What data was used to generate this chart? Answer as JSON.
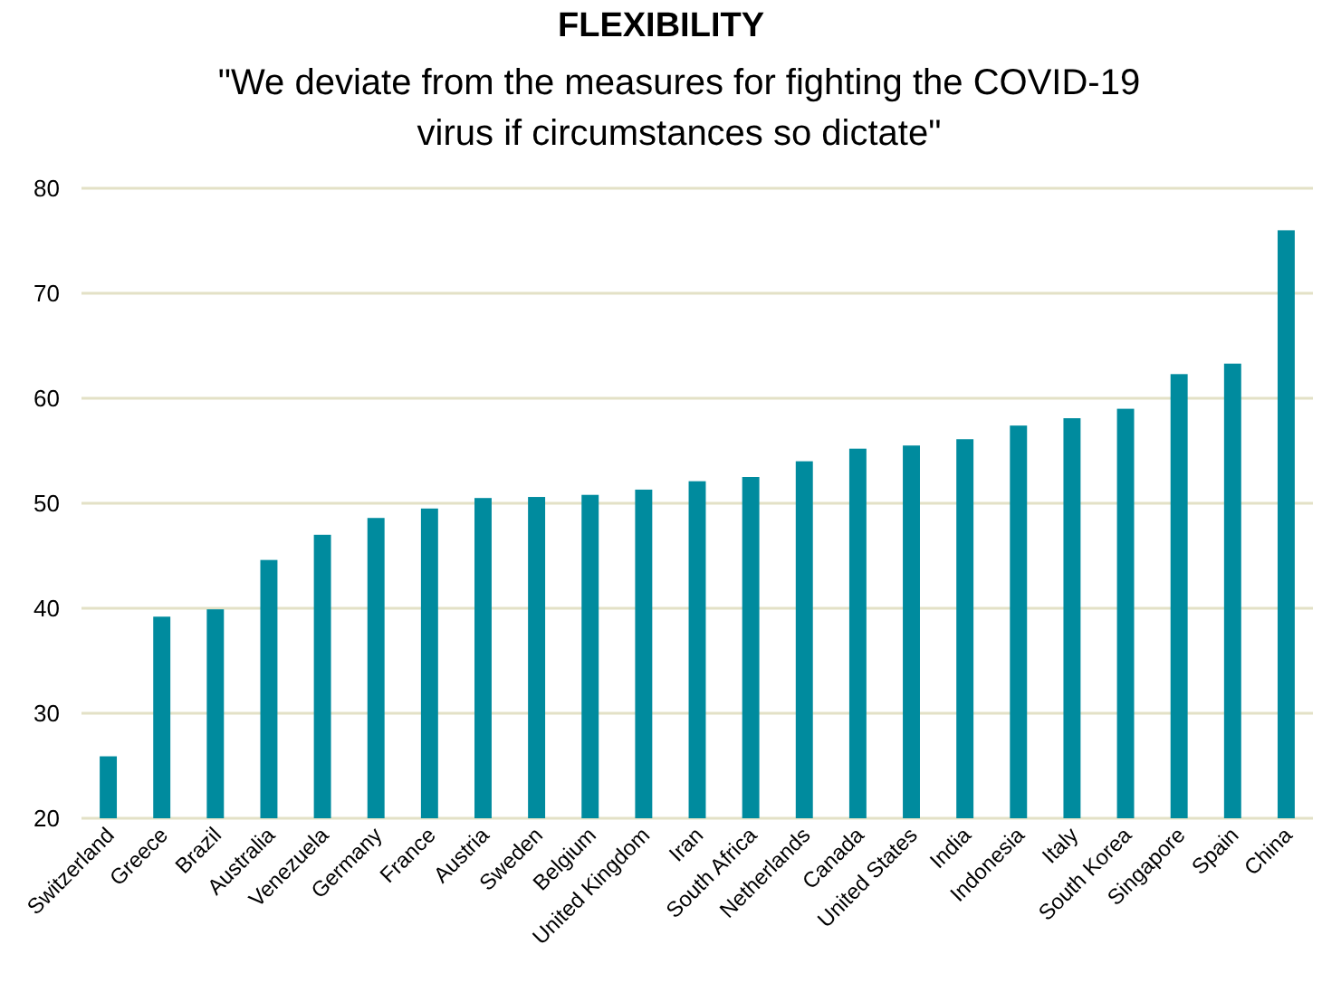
{
  "chart_data": {
    "type": "bar",
    "title": "FLEXIBILITY",
    "subtitle": "\"We deviate from the measures for fighting the COVID-19\nvirus if circumstances so dictate\"",
    "categories": [
      "Switzerland",
      "Greece",
      "Brazil",
      "Australia",
      "Venezuela",
      "Germany",
      "France",
      "Austria",
      "Sweden",
      "Belgium",
      "United Kingdom",
      "Iran",
      "South Africa",
      "Netherlands",
      "Canada",
      "United States",
      "India",
      "Indonesia",
      "Italy",
      "South Korea",
      "Singapore",
      "Spain",
      "China"
    ],
    "values": [
      25.9,
      39.2,
      39.9,
      44.6,
      47.0,
      48.6,
      49.5,
      50.5,
      50.6,
      50.8,
      51.3,
      52.1,
      52.5,
      54.0,
      55.2,
      55.5,
      56.1,
      57.4,
      58.1,
      59.0,
      62.3,
      63.3,
      76.0
    ],
    "color": "#008b9e",
    "ylim": [
      20,
      80
    ],
    "yticks": [
      20,
      30,
      40,
      50,
      60,
      70,
      80
    ],
    "grid": "y"
  }
}
